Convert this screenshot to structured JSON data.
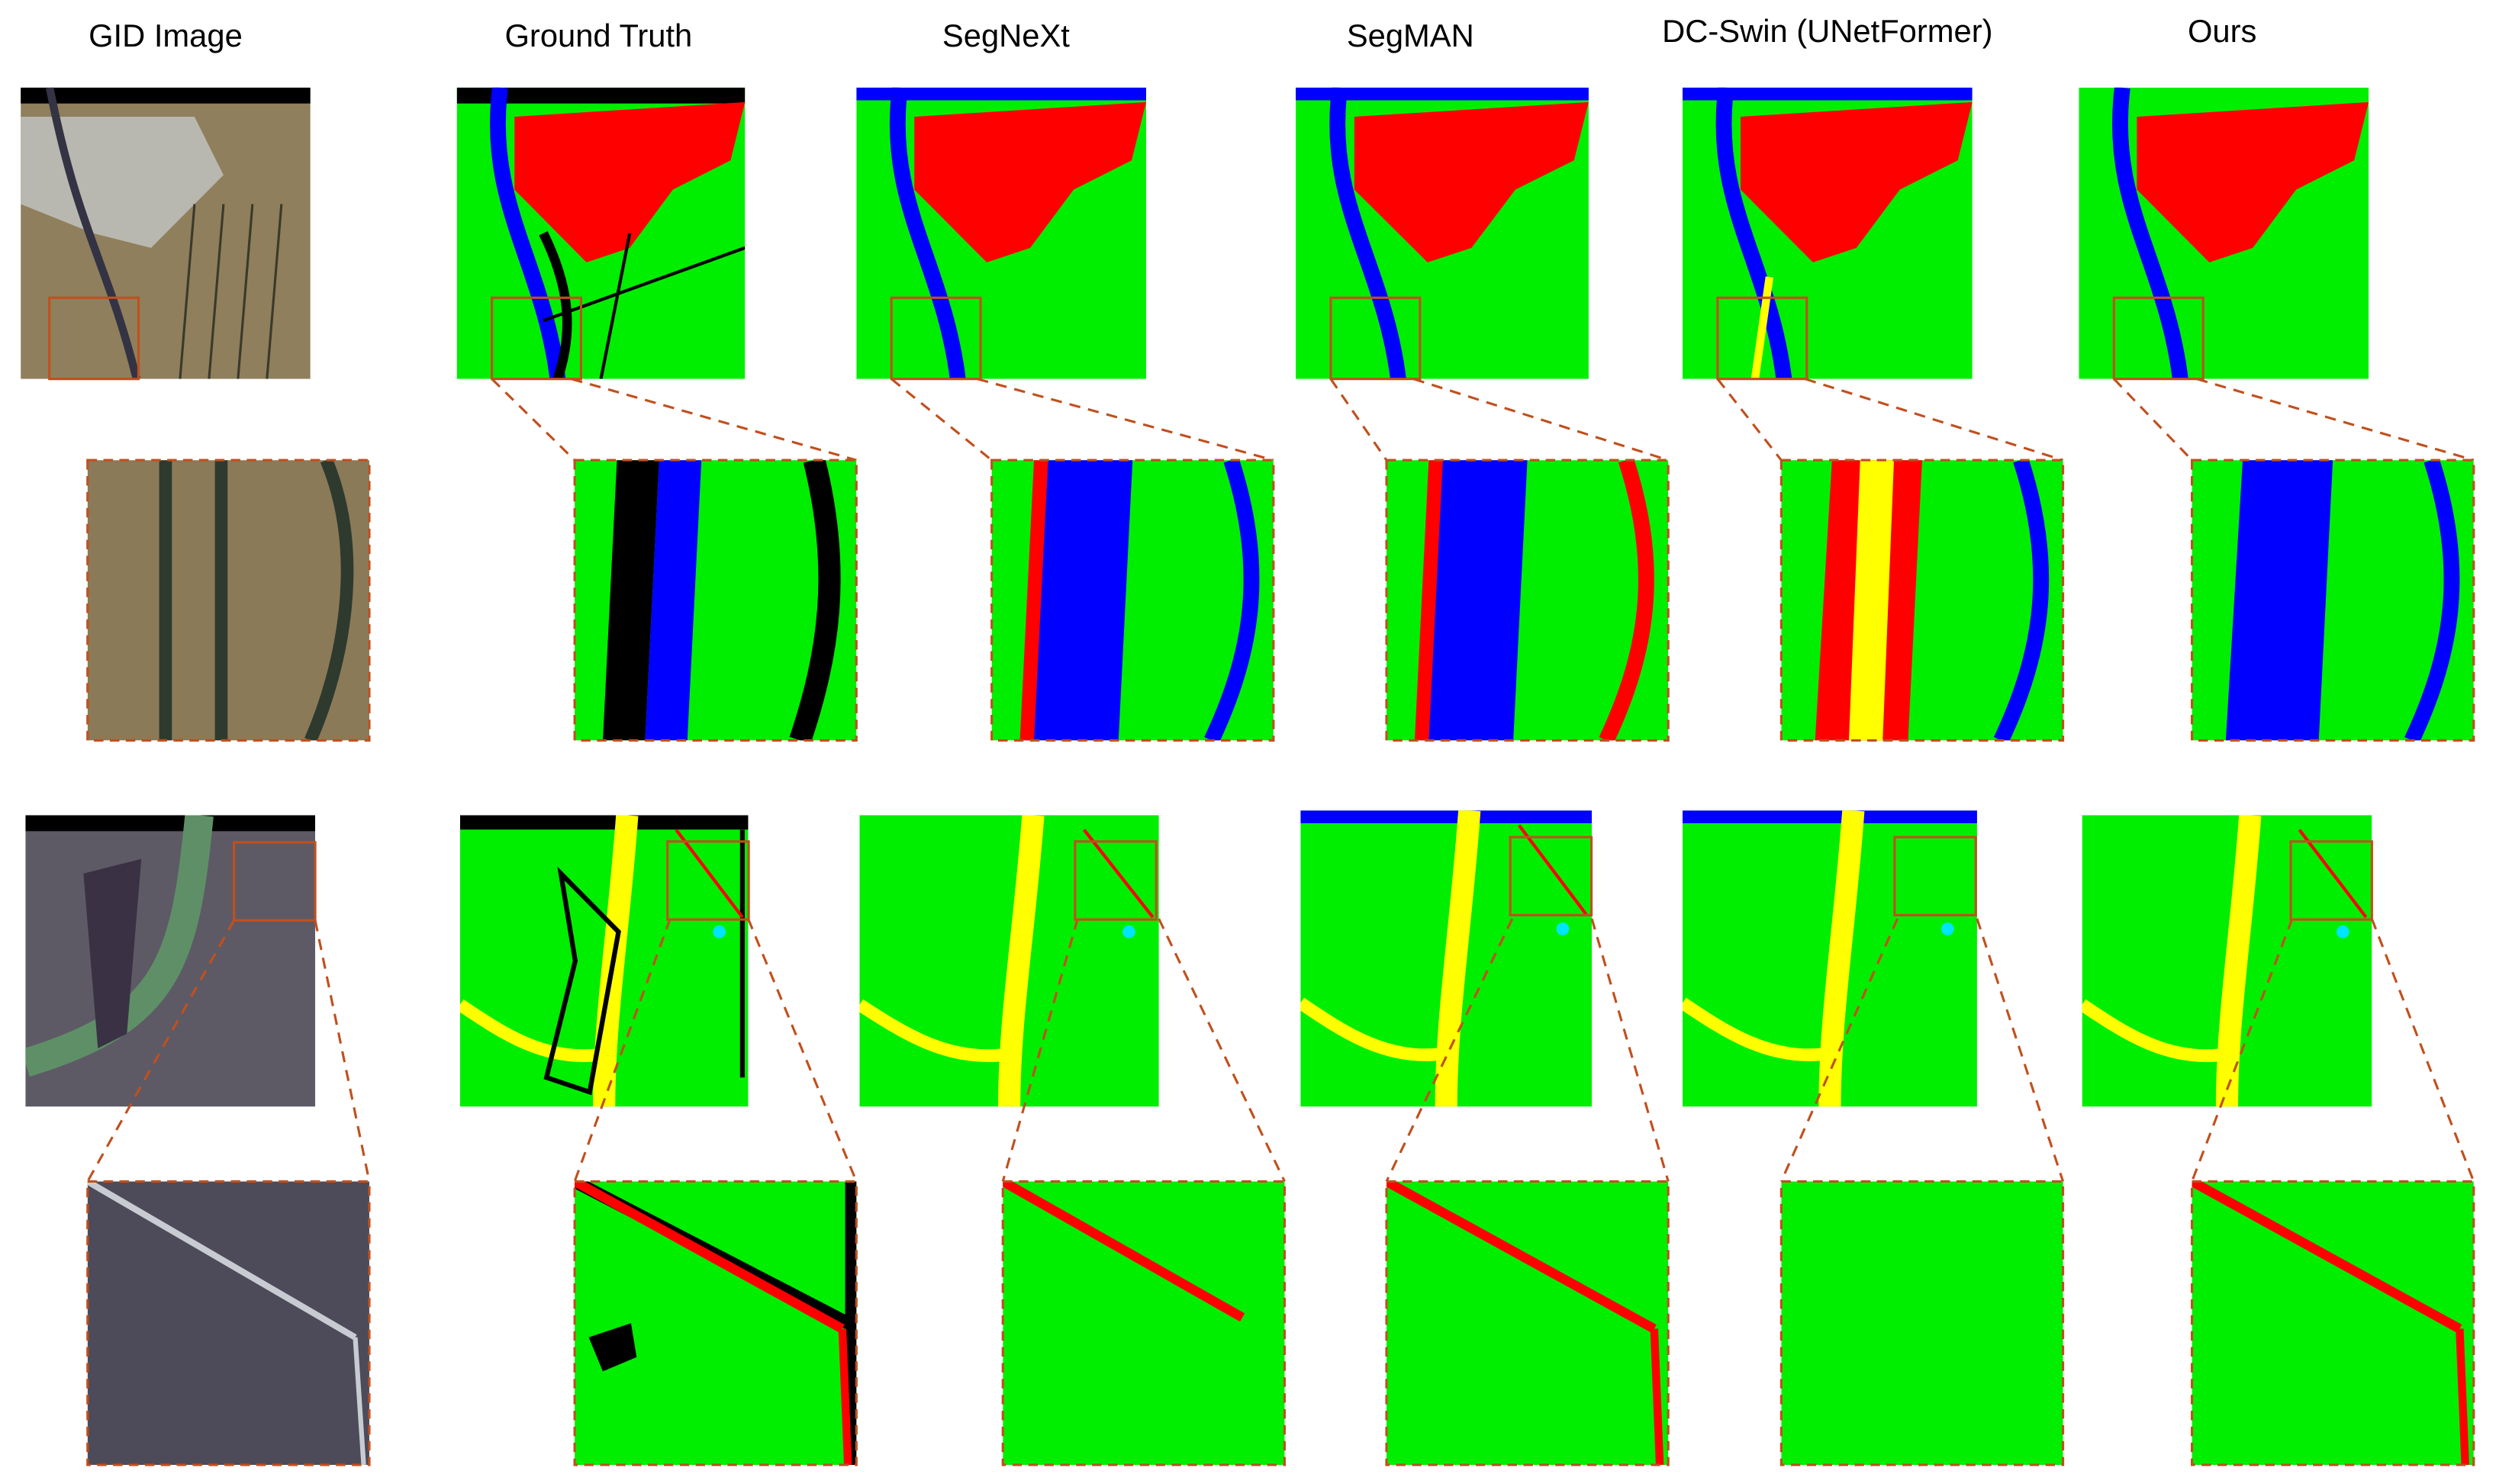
{
  "columns": [
    "GID Image",
    "Ground Truth",
    "SegNeXt",
    "SegMAN",
    "DC-Swin (UNetFormer)",
    "Ours"
  ]
}
